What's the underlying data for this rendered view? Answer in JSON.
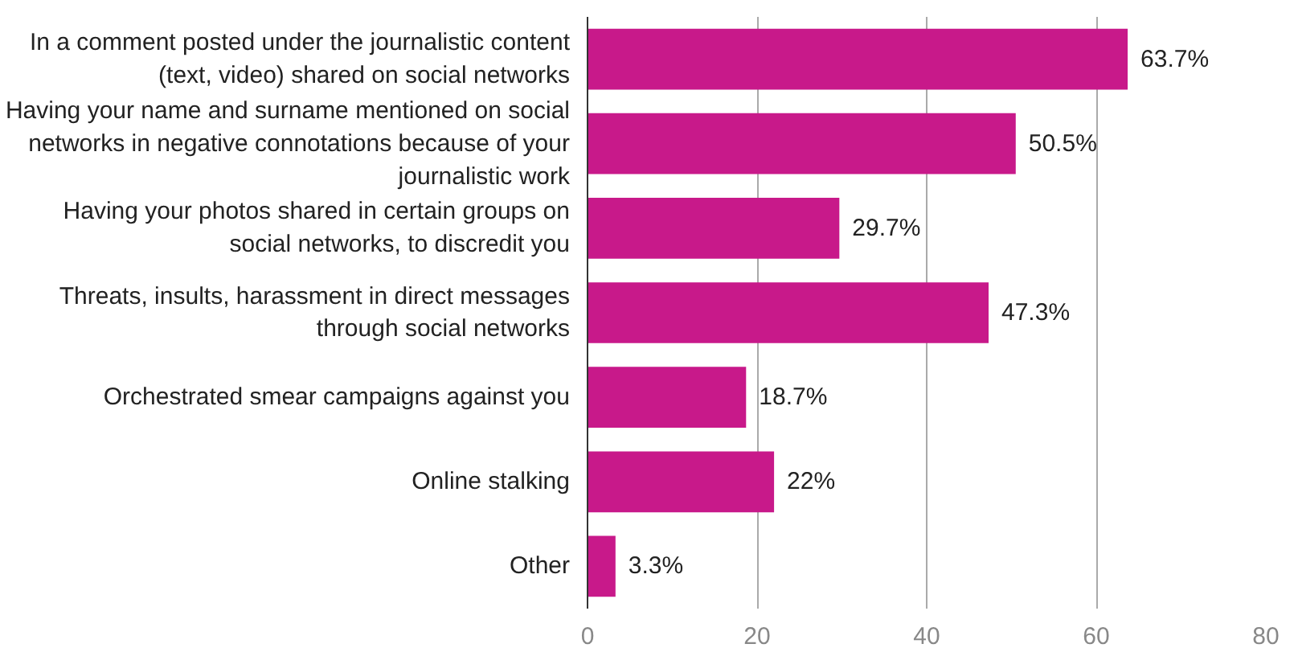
{
  "chart_data": {
    "type": "bar",
    "orientation": "horizontal",
    "categories": [
      "In a comment posted under the journalistic content (text, video) shared on social networks",
      "Having your name and surname mentioned on social networks in negative connotations because of your journalistic work",
      "Having your photos shared in certain groups on social networks, to discredit you",
      "Threats, insults, harassment in direct messages through social networks",
      "Orchestrated smear campaigns against you",
      "Online stalking",
      "Other"
    ],
    "values": [
      63.7,
      50.5,
      29.7,
      47.3,
      18.7,
      22,
      3.3
    ],
    "value_labels": [
      "63.7%",
      "50.5%",
      "29.7%",
      "47.3%",
      "18.7%",
      "22%",
      "3.3%"
    ],
    "color": "#c8198a",
    "xlim": [
      0,
      80
    ],
    "xticks": [
      0,
      20,
      40,
      60,
      80
    ],
    "grid": "x"
  }
}
